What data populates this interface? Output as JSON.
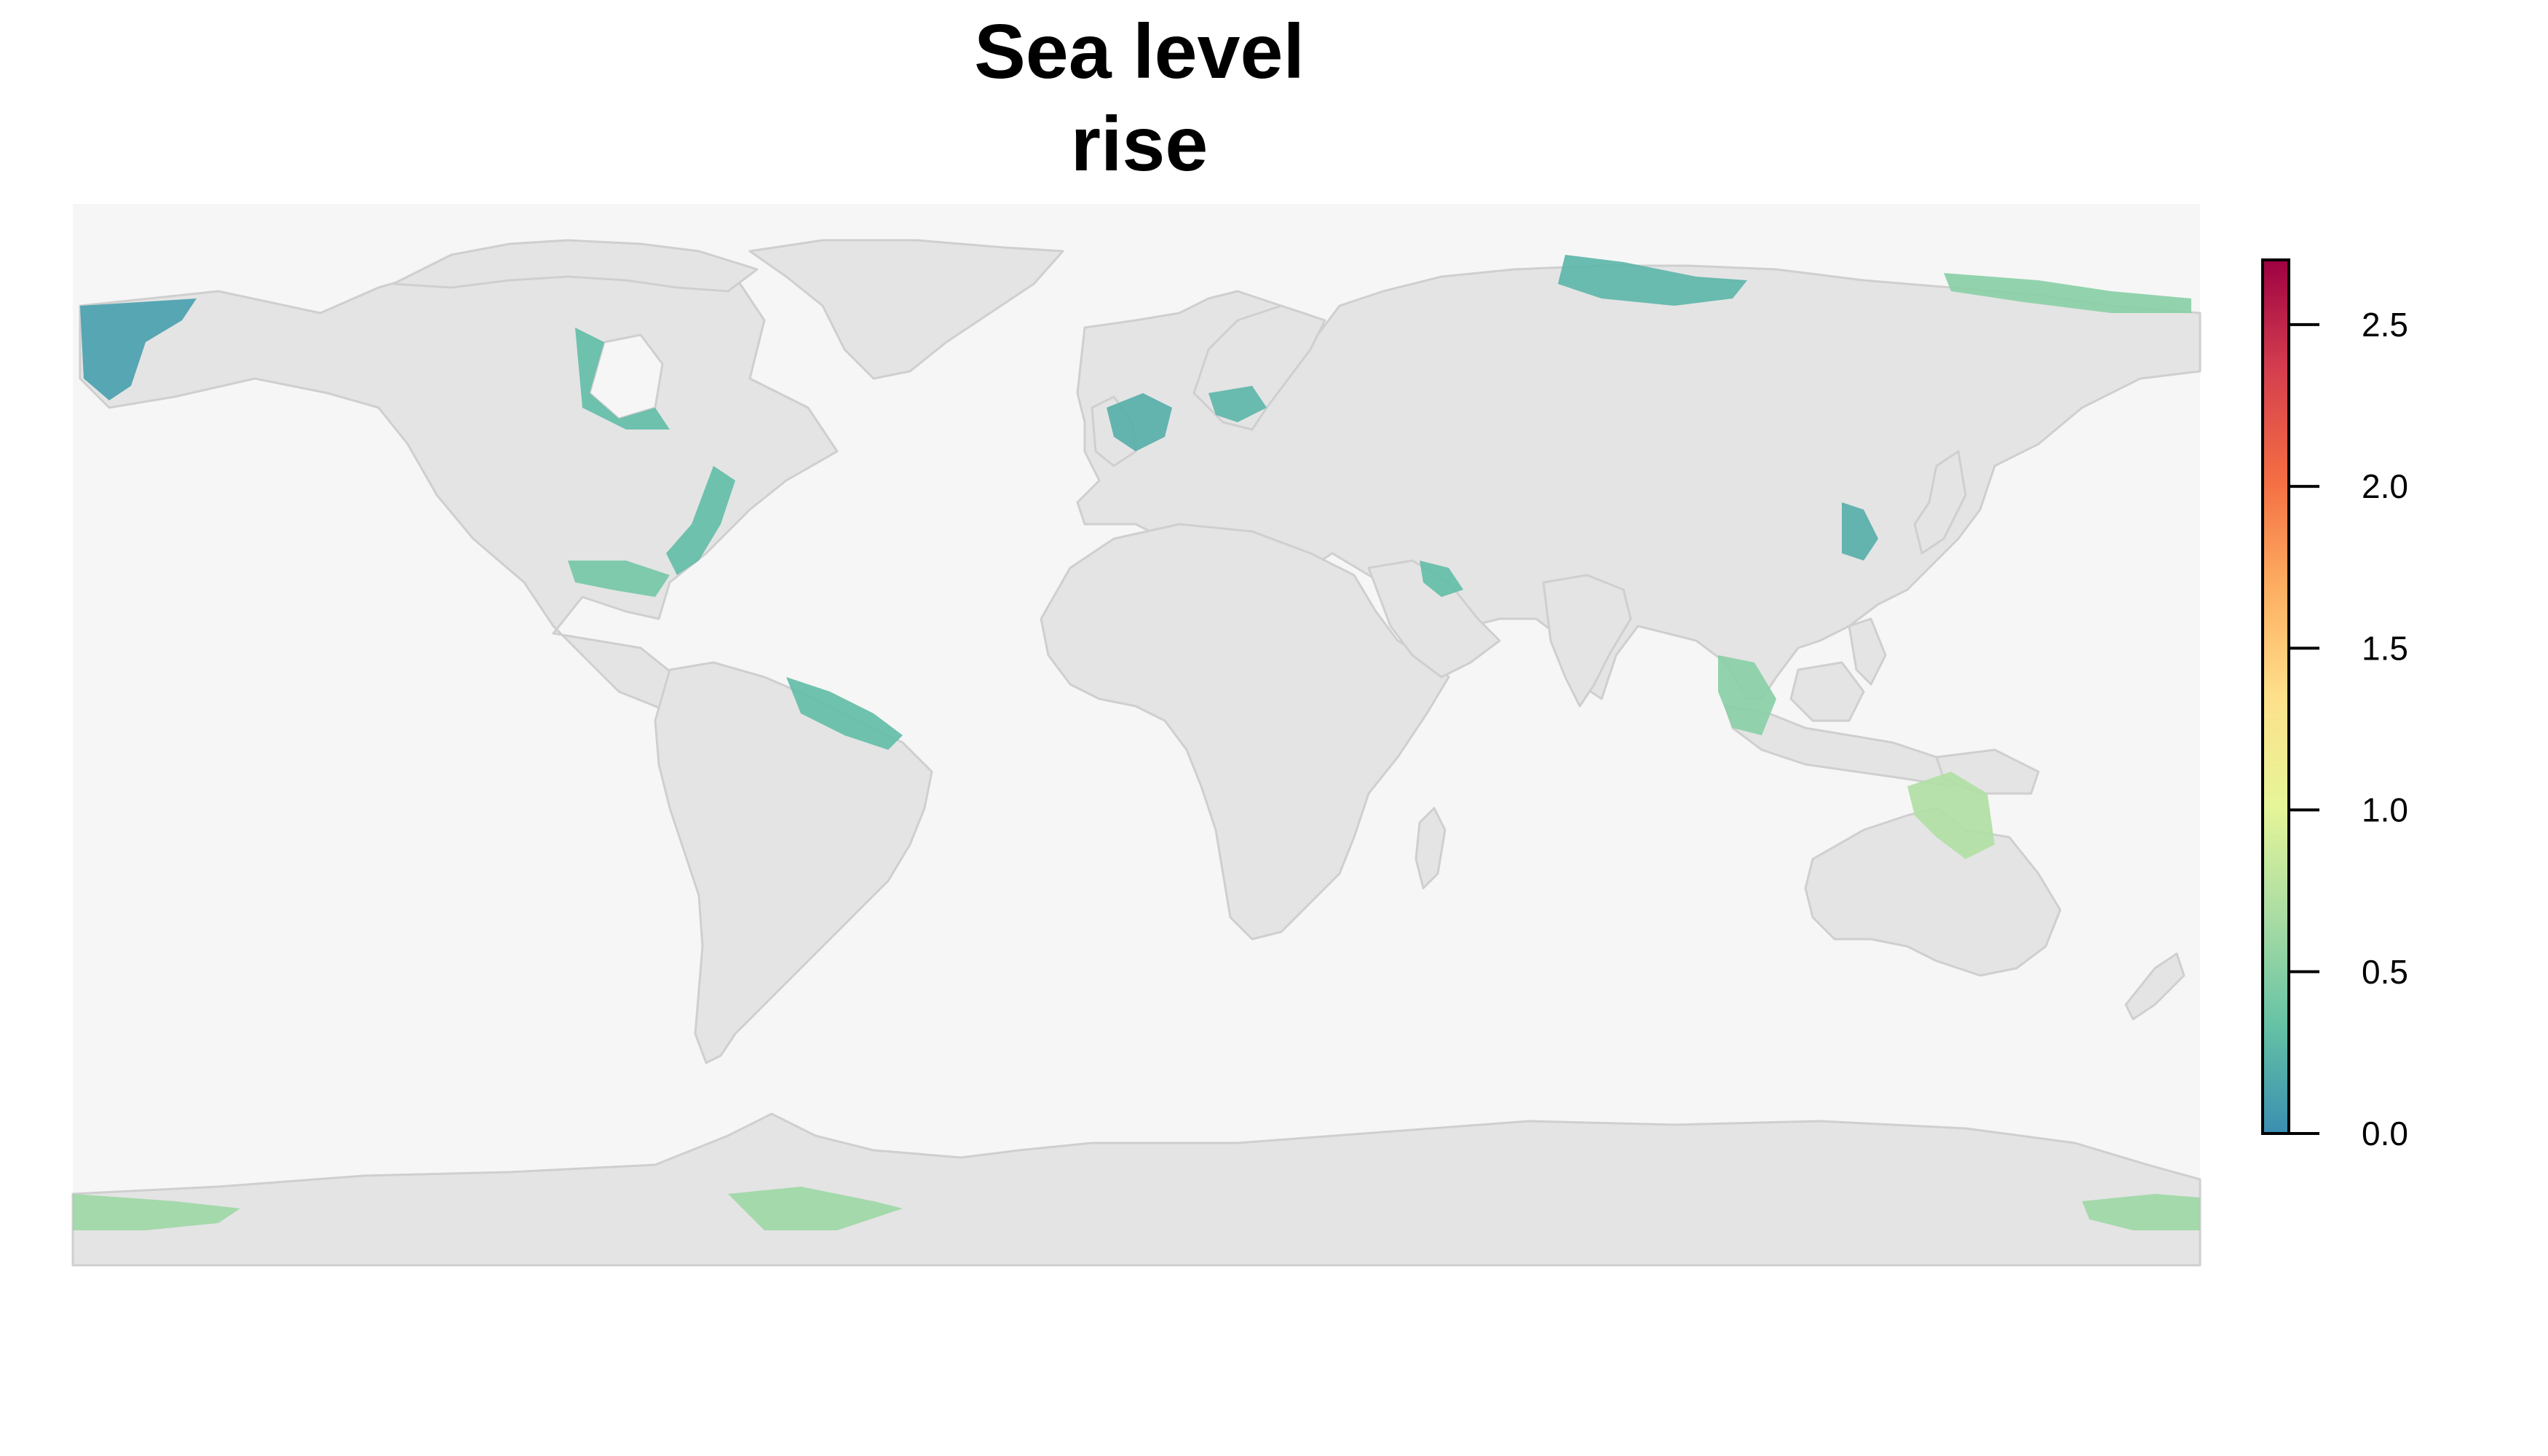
{
  "title": "Sea level rise",
  "map": {
    "projection": "equirectangular",
    "extent": {
      "lon": [
        -180,
        180
      ],
      "lat": [
        -90,
        90
      ]
    },
    "ocean_color": "#f6f6f6",
    "land_color": "#e4e4e4",
    "border_color": "#cfcfcf"
  },
  "legend": {
    "min": 0.0,
    "max": 2.7,
    "ticks": [
      "0.0",
      "0.5",
      "1.0",
      "1.5",
      "2.0",
      "2.5"
    ],
    "tick_values": [
      0.0,
      0.5,
      1.0,
      1.5,
      2.0,
      2.5
    ],
    "palette": [
      "#3a8fb0",
      "#66c2a5",
      "#abdda4",
      "#e6f598",
      "#fee08b",
      "#fdae61",
      "#f46d43",
      "#d53e4f",
      "#9e0142"
    ]
  },
  "highlighted_regions": [
    {
      "name": "Alaska",
      "level": 0.1
    },
    {
      "name": "Hudson Bay",
      "level": 0.3
    },
    {
      "name": "US East Coast",
      "level": 0.3
    },
    {
      "name": "Gulf of Mexico",
      "level": 0.4
    },
    {
      "name": "North Sea",
      "level": 0.2
    },
    {
      "name": "Baltic",
      "level": 0.25
    },
    {
      "name": "Northern Russia",
      "level": 0.25
    },
    {
      "name": "Eastern Siberia",
      "level": 0.5
    },
    {
      "name": "Eastern China",
      "level": 0.2
    },
    {
      "name": "Southeast Asia",
      "level": 0.5
    },
    {
      "name": "Northern Australia",
      "level": 0.7
    },
    {
      "name": "Amazon coast",
      "level": 0.3
    },
    {
      "name": "Persian Gulf",
      "level": 0.3
    },
    {
      "name": "Antarctica Ross",
      "level": 0.6
    },
    {
      "name": "Antarctica Weddell",
      "level": 0.6
    }
  ]
}
